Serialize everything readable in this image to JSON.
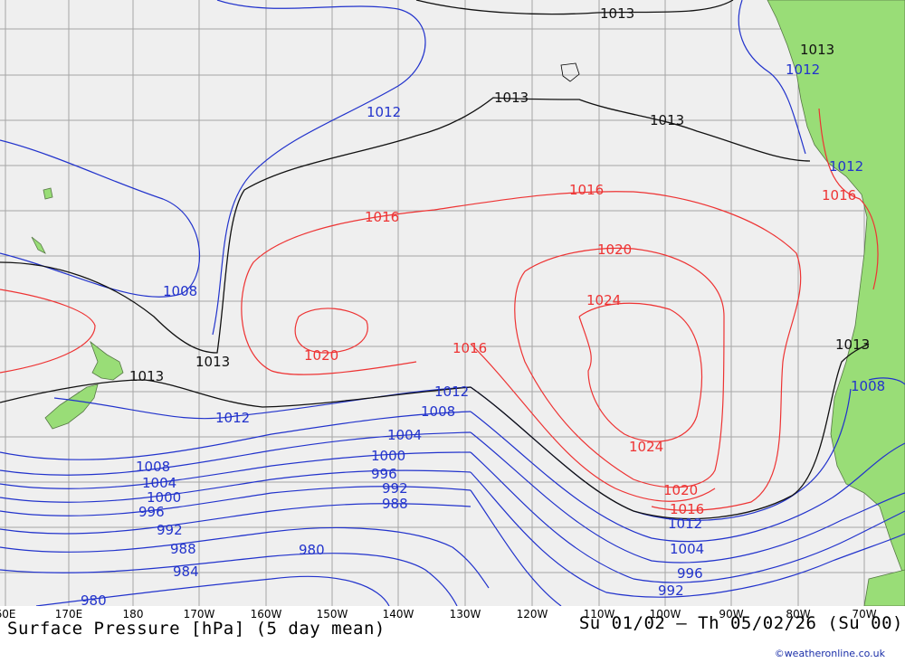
{
  "title": "Surface Pressure [hPa] (5 day mean)",
  "period": "Su 01/02 – Th 05/02/26 (Su 00)",
  "credit": "©weatheronline.co.uk",
  "colors": {
    "sea": "#efefef",
    "land": "#99dd77",
    "grid": "#a6a6a6",
    "low_isobar": "#2233cc",
    "mid_isobar": "#111111",
    "high_isobar": "#ee3333"
  },
  "longitudes": [
    "60E",
    "170E",
    "180",
    "170W",
    "160W",
    "150W",
    "140W",
    "130W",
    "120W",
    "110W",
    "100W",
    "90W",
    "80W",
    "70W"
  ],
  "isobar_labels": {
    "blue": [
      "1012",
      "1012",
      "1012",
      "1008",
      "1012",
      "1012",
      "1008",
      "1008",
      "1004",
      "1000",
      "996",
      "992",
      "988",
      "1008",
      "1004",
      "1000",
      "996",
      "992",
      "988",
      "984",
      "980",
      "980",
      "1012",
      "1004",
      "996",
      "992"
    ],
    "black": [
      "1013",
      "1013",
      "1013",
      "1013",
      "1013",
      "1013",
      "1013"
    ],
    "red": [
      "1016",
      "1016",
      "1016",
      "1020",
      "1024",
      "1020",
      "1016",
      "1024",
      "1020",
      "1016"
    ]
  }
}
